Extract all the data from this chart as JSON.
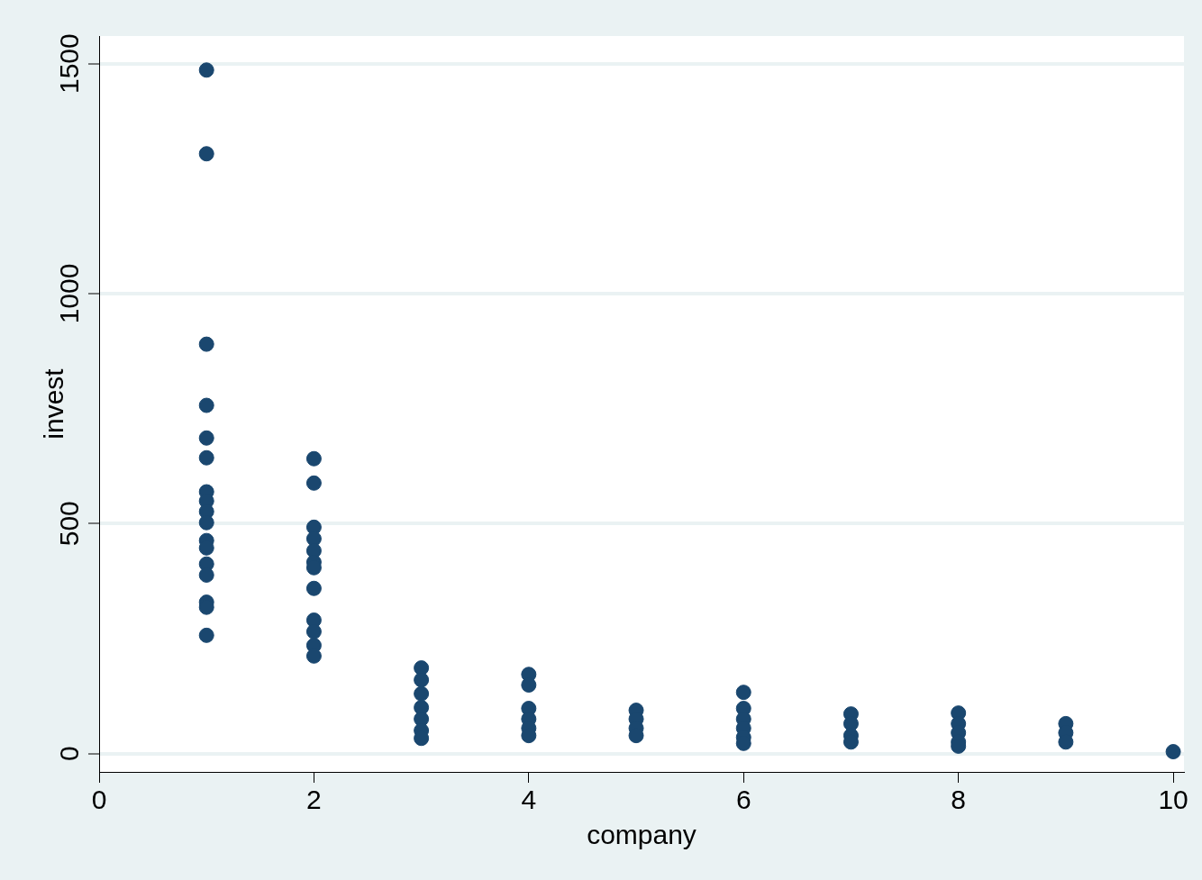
{
  "chart_data": {
    "type": "scatter",
    "xlabel": "company",
    "ylabel": "invest",
    "xlim": [
      0,
      10.1
    ],
    "ylim": [
      -40,
      1560
    ],
    "xticks": [
      0,
      2,
      4,
      6,
      8,
      10
    ],
    "yticks": [
      0,
      500,
      1000,
      1500
    ],
    "grid": "y",
    "marker": "circle",
    "legend": false,
    "series": [
      {
        "color": "#1a476f",
        "x": [
          1,
          1,
          1,
          1,
          1,
          1,
          1,
          1,
          1,
          1,
          1,
          1,
          1,
          1,
          1,
          1,
          1,
          2,
          2,
          2,
          2,
          2,
          2,
          2,
          2,
          2,
          2,
          2,
          2,
          3,
          3,
          3,
          3,
          3,
          3,
          3,
          4,
          4,
          4,
          4,
          4,
          4,
          5,
          5,
          5,
          5,
          6,
          6,
          6,
          6,
          6,
          6,
          7,
          7,
          7,
          7,
          8,
          8,
          8,
          8,
          8,
          9,
          9,
          9,
          10
        ],
        "values": [
          1486,
          1304,
          890,
          757,
          686,
          643,
          569,
          549,
          526,
          502,
          463,
          447,
          412,
          388,
          329,
          318,
          257,
          641,
          588,
          492,
          467,
          441,
          416,
          404,
          359,
          290,
          265,
          235,
          212,
          186,
          160,
          130,
          100,
          75,
          50,
          33,
          172,
          149,
          98,
          75,
          55,
          39,
          94,
          75,
          55,
          39,
          133,
          98,
          75,
          55,
          35,
          22,
          86,
          65,
          39,
          25,
          88,
          65,
          45,
          25,
          16,
          65,
          45,
          25,
          4
        ]
      }
    ]
  }
}
